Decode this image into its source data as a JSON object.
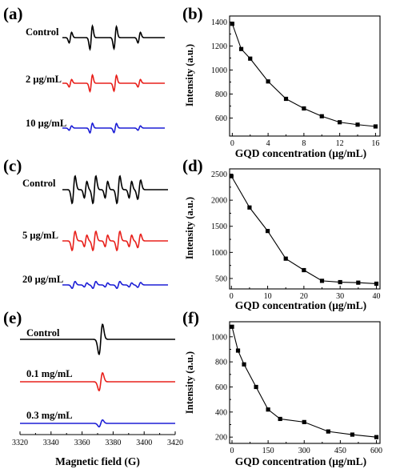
{
  "figure": {
    "panel_labels": [
      "(a)",
      "(b)",
      "(c)",
      "(d)",
      "(e)",
      "(f)"
    ],
    "epr_xlabel": "Magnetic field (G)",
    "epr_xticks": [
      "3320",
      "3340",
      "3360",
      "3380",
      "3400",
      "3420"
    ],
    "colors": {
      "black": "#000000",
      "red": "#e8201b",
      "blue": "#1d1fd6"
    }
  },
  "chart_data": [
    {
      "panel": "(a)",
      "type": "line",
      "series": [
        {
          "name": "Control",
          "color": "#000000"
        },
        {
          "name": "2 μg/mL",
          "color": "#e8201b"
        },
        {
          "name": "10 μg/mL",
          "color": "#1d1fd6"
        }
      ]
    },
    {
      "panel": "(b)",
      "type": "line",
      "xlabel": "GQD concentration (μg/mL)",
      "ylabel": "Intensity (a.u.)",
      "xlim": [
        -0.3,
        16.5
      ],
      "ylim": [
        450,
        1450
      ],
      "xticks": [
        0,
        4,
        8,
        12,
        16
      ],
      "yticks": [
        600,
        800,
        1000,
        1200,
        1400
      ],
      "x": [
        0,
        1,
        2,
        4,
        6,
        8,
        10,
        12,
        14,
        16
      ],
      "values": [
        1385,
        1175,
        1095,
        905,
        760,
        680,
        615,
        565,
        545,
        530
      ]
    },
    {
      "panel": "(c)",
      "type": "line",
      "series": [
        {
          "name": "Control",
          "color": "#000000"
        },
        {
          "name": "5 μg/mL",
          "color": "#e8201b"
        },
        {
          "name": "20 μg/mL",
          "color": "#1d1fd6"
        }
      ]
    },
    {
      "panel": "(d)",
      "type": "line",
      "xlabel": "GQD concentration (μg/mL)",
      "ylabel": "Intensity (a.u.)",
      "xlim": [
        -0.5,
        41
      ],
      "ylim": [
        300,
        2600
      ],
      "xticks": [
        0,
        10,
        20,
        30,
        40
      ],
      "yticks": [
        500,
        1000,
        1500,
        2000,
        2500
      ],
      "x": [
        0,
        5,
        10,
        15,
        20,
        25,
        30,
        35,
        40
      ],
      "values": [
        2460,
        1860,
        1410,
        880,
        660,
        455,
        430,
        420,
        400
      ]
    },
    {
      "panel": "(e)",
      "type": "line",
      "xlabel": "Magnetic field (G)",
      "xlim": [
        3320,
        3420
      ],
      "series": [
        {
          "name": "Control",
          "color": "#000000"
        },
        {
          "name": "0.1 mg/mL",
          "color": "#e8201b"
        },
        {
          "name": "0.3 mg/mL",
          "color": "#1d1fd6"
        }
      ]
    },
    {
      "panel": "(f)",
      "type": "line",
      "xlabel": "GQD concentration (μg/mL)",
      "ylabel": "Intensity (a.u.)",
      "xlim": [
        -10,
        615
      ],
      "ylim": [
        150,
        1120
      ],
      "xticks": [
        0,
        150,
        300,
        450,
        600
      ],
      "yticks": [
        200,
        400,
        600,
        800,
        1000
      ],
      "x": [
        0,
        25,
        50,
        100,
        150,
        200,
        300,
        400,
        500,
        600
      ],
      "values": [
        1080,
        890,
        780,
        600,
        420,
        345,
        320,
        245,
        220,
        200
      ]
    }
  ]
}
